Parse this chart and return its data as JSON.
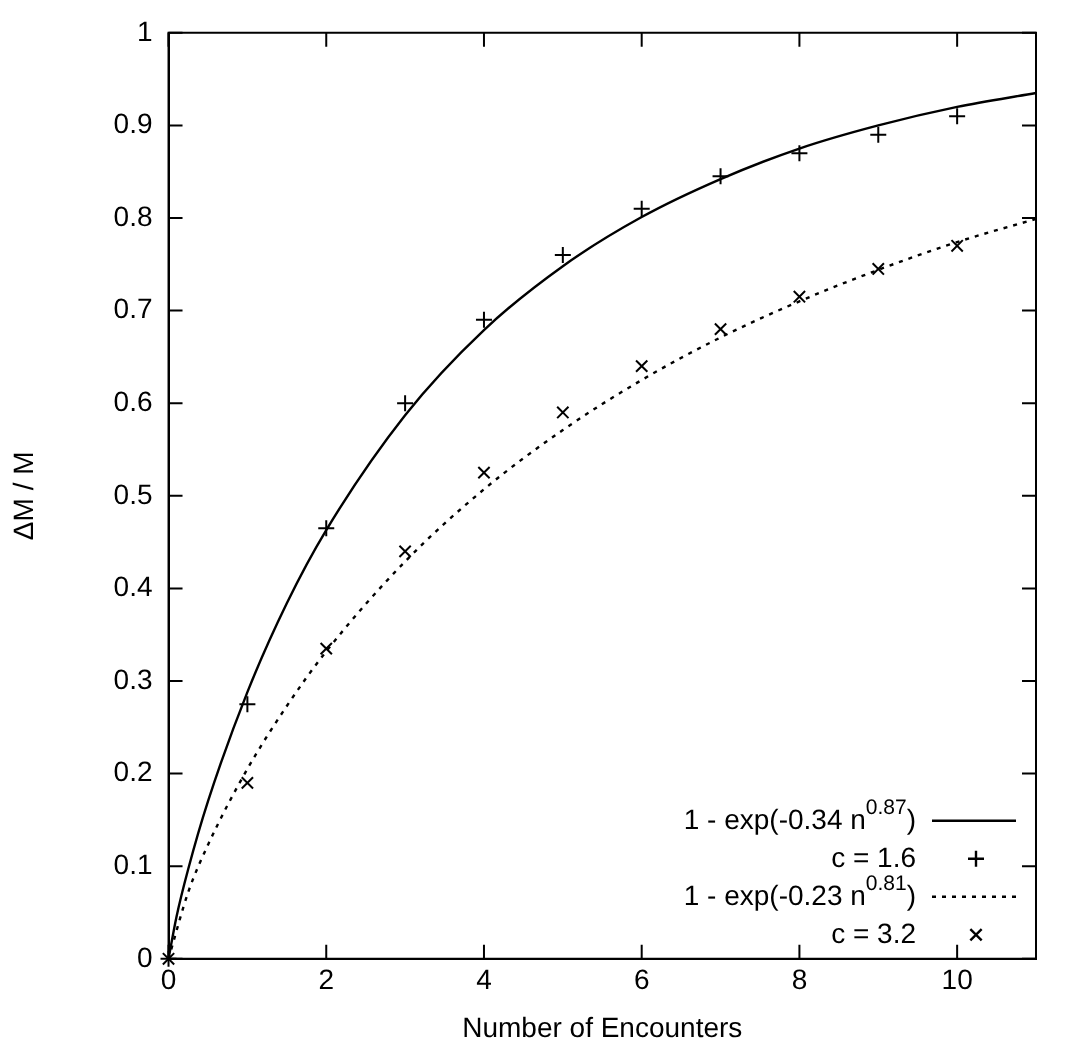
{
  "chart_data": {
    "type": "scatter",
    "xlabel": "Number of Encounters",
    "ylabel": "ΔM / M",
    "xlim": [
      0,
      11
    ],
    "xticks": [
      0,
      2,
      4,
      6,
      8,
      10
    ],
    "ylim": [
      0,
      1
    ],
    "yticks": [
      0,
      0.1,
      0.2,
      0.3,
      0.4,
      0.5,
      0.6,
      0.7,
      0.8,
      0.9,
      1
    ],
    "grid": false,
    "legend": "bottom right",
    "series": [
      {
        "name": "1 - exp(-0.34 n$^{0.87}$)",
        "type": "line",
        "line_style": "solid",
        "marker": "none",
        "color": "#000000",
        "x": [
          0,
          0.1,
          0.25,
          0.5,
          1,
          1.5,
          2,
          3,
          4,
          5,
          6,
          7,
          8,
          9,
          10,
          11
        ],
        "values": [
          0,
          0.045,
          0.097,
          0.17,
          0.288,
          0.384,
          0.463,
          0.587,
          0.679,
          0.748,
          0.801,
          0.842,
          0.875,
          0.9,
          0.92,
          0.935
        ]
      },
      {
        "name": "c = 1.6",
        "type": "scatter",
        "marker": "cross",
        "color": "#000000",
        "x": [
          0,
          1,
          2,
          3,
          4,
          5,
          6,
          7,
          8,
          9,
          10
        ],
        "values": [
          0,
          0.275,
          0.465,
          0.6,
          0.69,
          0.76,
          0.81,
          0.845,
          0.87,
          0.89,
          0.91
        ]
      },
      {
        "name": "1 - exp(-0.23 n$^{0.81}$)",
        "type": "line",
        "line_style": "dotted",
        "marker": "none",
        "color": "#000000",
        "x": [
          0,
          0.25,
          0.5,
          1,
          1.5,
          2,
          3,
          4,
          5,
          6,
          7,
          8,
          9,
          10,
          11
        ],
        "values": [
          0,
          0.072,
          0.123,
          0.205,
          0.273,
          0.332,
          0.429,
          0.507,
          0.571,
          0.625,
          0.671,
          0.71,
          0.744,
          0.774,
          0.799
        ]
      },
      {
        "name": "c = 3.2",
        "type": "scatter",
        "marker": "x",
        "color": "#000000",
        "x": [
          0,
          1,
          2,
          3,
          4,
          5,
          6,
          7,
          8,
          9,
          10
        ],
        "values": [
          0,
          0.19,
          0.335,
          0.44,
          0.525,
          0.59,
          0.64,
          0.68,
          0.715,
          0.745,
          0.77
        ]
      }
    ]
  }
}
